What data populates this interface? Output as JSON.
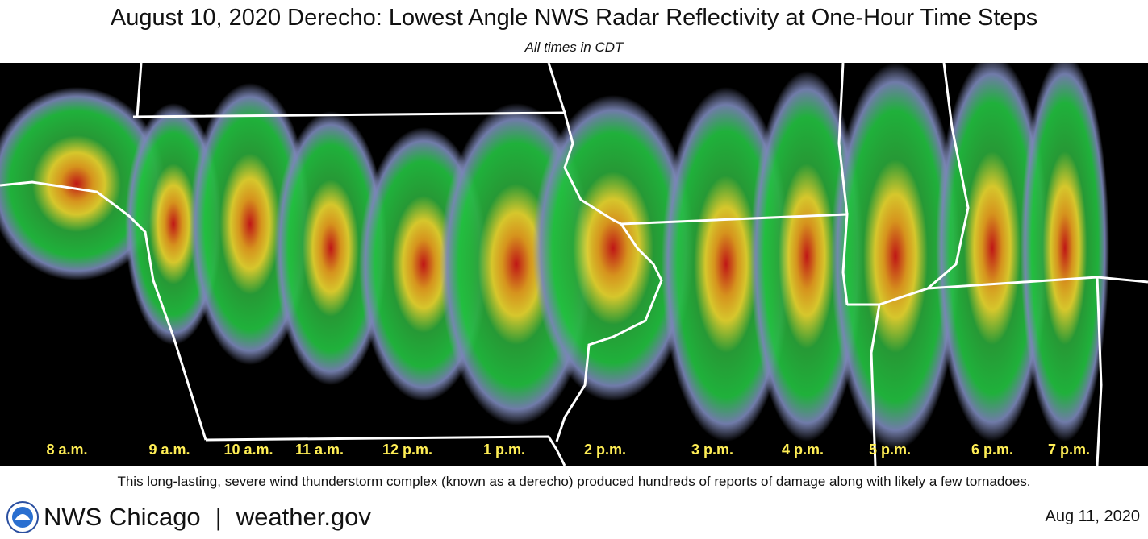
{
  "header": {
    "title": "August 10, 2020 Derecho:  Lowest Angle NWS Radar Reflectivity at One-Hour Time Steps",
    "subtitle": "All times in CDT"
  },
  "time_labels": [
    "8 a.m.",
    "9 a.m.",
    "10 a.m.",
    "11 a.m.",
    "12 p.m.",
    "1 p.m.",
    "2 p.m.",
    "3 p.m.",
    "4 p.m.",
    "5 p.m.",
    "6 p.m.",
    "7 p.m."
  ],
  "caption": "This long-lasting, severe wind thunderstorm complex (known as a derecho) produced hundreds of reports of damage along with likely a few tornadoes.",
  "footer": {
    "brand": "NWS Chicago",
    "separator": "|",
    "site": "weather.gov",
    "date": "Aug 11, 2020"
  }
}
